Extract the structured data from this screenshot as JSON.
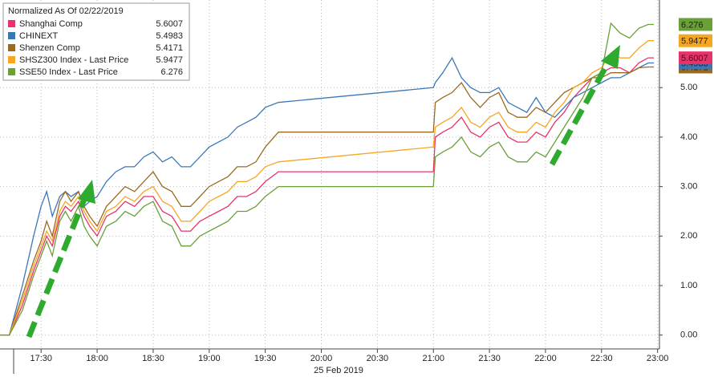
{
  "chart_data": {
    "type": "line",
    "legend_title": "Normalized As Of 02/22/2019",
    "x_axis_label": "25 Feb 2019",
    "x": [
      1028,
      1033,
      1040,
      1046,
      1050,
      1053,
      1056,
      1060,
      1063,
      1066,
      1070,
      1073,
      1076,
      1080,
      1085,
      1090,
      1095,
      1100,
      1105,
      1110,
      1115,
      1120,
      1125,
      1130,
      1135,
      1140,
      1145,
      1150,
      1155,
      1160,
      1165,
      1170,
      1177,
      1260,
      1261,
      1265,
      1270,
      1275,
      1280,
      1285,
      1290,
      1295,
      1300,
      1305,
      1310,
      1315,
      1320,
      1325,
      1330,
      1335,
      1340,
      1345,
      1350,
      1355,
      1360,
      1365,
      1370,
      1375,
      1378
    ],
    "xlim": [
      1028,
      1381
    ],
    "xticks": [
      {
        "value": 1050,
        "label": "17:30"
      },
      {
        "value": 1080,
        "label": "18:00"
      },
      {
        "value": 1110,
        "label": "18:30"
      },
      {
        "value": 1140,
        "label": "19:00"
      },
      {
        "value": 1170,
        "label": "19:30"
      },
      {
        "value": 1200,
        "label": "20:00"
      },
      {
        "value": 1230,
        "label": "20:30"
      },
      {
        "value": 1260,
        "label": "21:00"
      },
      {
        "value": 1290,
        "label": "21:30"
      },
      {
        "value": 1320,
        "label": "22:00"
      },
      {
        "value": 1350,
        "label": "22:30"
      },
      {
        "value": 1380,
        "label": "23:00"
      }
    ],
    "ylim": [
      -0.28,
      6.77
    ],
    "yticks": [
      {
        "value": 0,
        "label": "0.00"
      },
      {
        "value": 1,
        "label": "1.00"
      },
      {
        "value": 2,
        "label": "2.00"
      },
      {
        "value": 3,
        "label": "3.00"
      },
      {
        "value": 4,
        "label": "4.00"
      },
      {
        "value": 5,
        "label": "5.00"
      }
    ],
    "grid": true,
    "series": [
      {
        "name": "Shanghai Comp",
        "color": "#e8336a",
        "last": 5.6007,
        "values": [
          0,
          0,
          0.6,
          1.3,
          1.7,
          2.0,
          1.8,
          2.4,
          2.6,
          2.5,
          2.7,
          2.4,
          2.2,
          2.0,
          2.4,
          2.5,
          2.7,
          2.6,
          2.8,
          2.8,
          2.5,
          2.4,
          2.1,
          2.1,
          2.3,
          2.4,
          2.5,
          2.6,
          2.8,
          2.8,
          2.9,
          3.1,
          3.3,
          3.3,
          4.0,
          4.1,
          4.2,
          4.4,
          4.1,
          4.0,
          4.2,
          4.3,
          4.0,
          3.9,
          3.9,
          4.1,
          4.0,
          4.3,
          4.5,
          4.8,
          5.0,
          5.2,
          5.3,
          5.4,
          5.4,
          5.3,
          5.5,
          5.6007,
          5.6007
        ]
      },
      {
        "name": "CHINEXT",
        "color": "#3a78b5",
        "last": 5.4983,
        "values": [
          0,
          0,
          1.0,
          2.0,
          2.6,
          2.9,
          2.4,
          2.8,
          2.9,
          2.8,
          2.9,
          2.6,
          2.7,
          2.8,
          3.1,
          3.3,
          3.4,
          3.4,
          3.6,
          3.7,
          3.5,
          3.6,
          3.4,
          3.4,
          3.6,
          3.8,
          3.9,
          4.0,
          4.2,
          4.3,
          4.4,
          4.6,
          4.7,
          5.0,
          5.1,
          5.3,
          5.6,
          5.2,
          5.0,
          4.9,
          4.9,
          5.0,
          4.7,
          4.6,
          4.5,
          4.8,
          4.5,
          4.4,
          4.6,
          4.8,
          4.9,
          5.0,
          5.1,
          5.2,
          5.2,
          5.3,
          5.4,
          5.4983,
          5.4983
        ]
      },
      {
        "name": "Shenzen Comp",
        "color": "#9b6a1f",
        "last": 5.4171,
        "values": [
          0,
          0,
          0.8,
          1.5,
          1.9,
          2.3,
          2.0,
          2.7,
          2.9,
          2.7,
          2.9,
          2.6,
          2.4,
          2.2,
          2.6,
          2.8,
          3.0,
          2.9,
          3.1,
          3.3,
          3.0,
          2.9,
          2.6,
          2.6,
          2.8,
          3.0,
          3.1,
          3.2,
          3.4,
          3.4,
          3.5,
          3.8,
          4.1,
          4.1,
          4.7,
          4.8,
          4.9,
          5.1,
          4.8,
          4.6,
          4.8,
          4.9,
          4.5,
          4.4,
          4.4,
          4.6,
          4.5,
          4.7,
          4.9,
          5.0,
          5.1,
          5.2,
          5.2,
          5.3,
          5.3,
          5.3,
          5.4,
          5.4171,
          5.4171
        ]
      },
      {
        "name": "SHSZ300 Index - Last Price",
        "color": "#f5a623",
        "last": 5.9477,
        "values": [
          0,
          0,
          0.7,
          1.4,
          1.8,
          2.1,
          1.9,
          2.5,
          2.7,
          2.6,
          2.8,
          2.5,
          2.3,
          2.1,
          2.5,
          2.6,
          2.8,
          2.7,
          2.9,
          3.0,
          2.7,
          2.6,
          2.3,
          2.3,
          2.5,
          2.7,
          2.8,
          2.9,
          3.1,
          3.1,
          3.2,
          3.4,
          3.5,
          3.8,
          4.2,
          4.3,
          4.4,
          4.6,
          4.3,
          4.2,
          4.4,
          4.5,
          4.2,
          4.1,
          4.1,
          4.3,
          4.2,
          4.5,
          4.7,
          5.0,
          5.1,
          5.3,
          5.4,
          5.7,
          5.6,
          5.6,
          5.8,
          5.9477,
          5.9477
        ]
      },
      {
        "name": "SSE50 Index - Last Price",
        "color": "#6aa038",
        "last": 6.276,
        "values": [
          0,
          0,
          0.5,
          1.2,
          1.6,
          1.9,
          1.6,
          2.3,
          2.5,
          2.3,
          2.6,
          2.2,
          2.0,
          1.8,
          2.2,
          2.3,
          2.5,
          2.4,
          2.6,
          2.7,
          2.3,
          2.2,
          1.8,
          1.8,
          2.0,
          2.1,
          2.2,
          2.3,
          2.5,
          2.5,
          2.6,
          2.8,
          3.0,
          3.0,
          3.6,
          3.7,
          3.8,
          4.0,
          3.7,
          3.6,
          3.8,
          3.9,
          3.6,
          3.5,
          3.5,
          3.7,
          3.6,
          3.9,
          4.2,
          4.5,
          4.8,
          5.2,
          5.3,
          6.3,
          6.1,
          6.0,
          6.2,
          6.276,
          6.276
        ]
      }
    ]
  }
}
